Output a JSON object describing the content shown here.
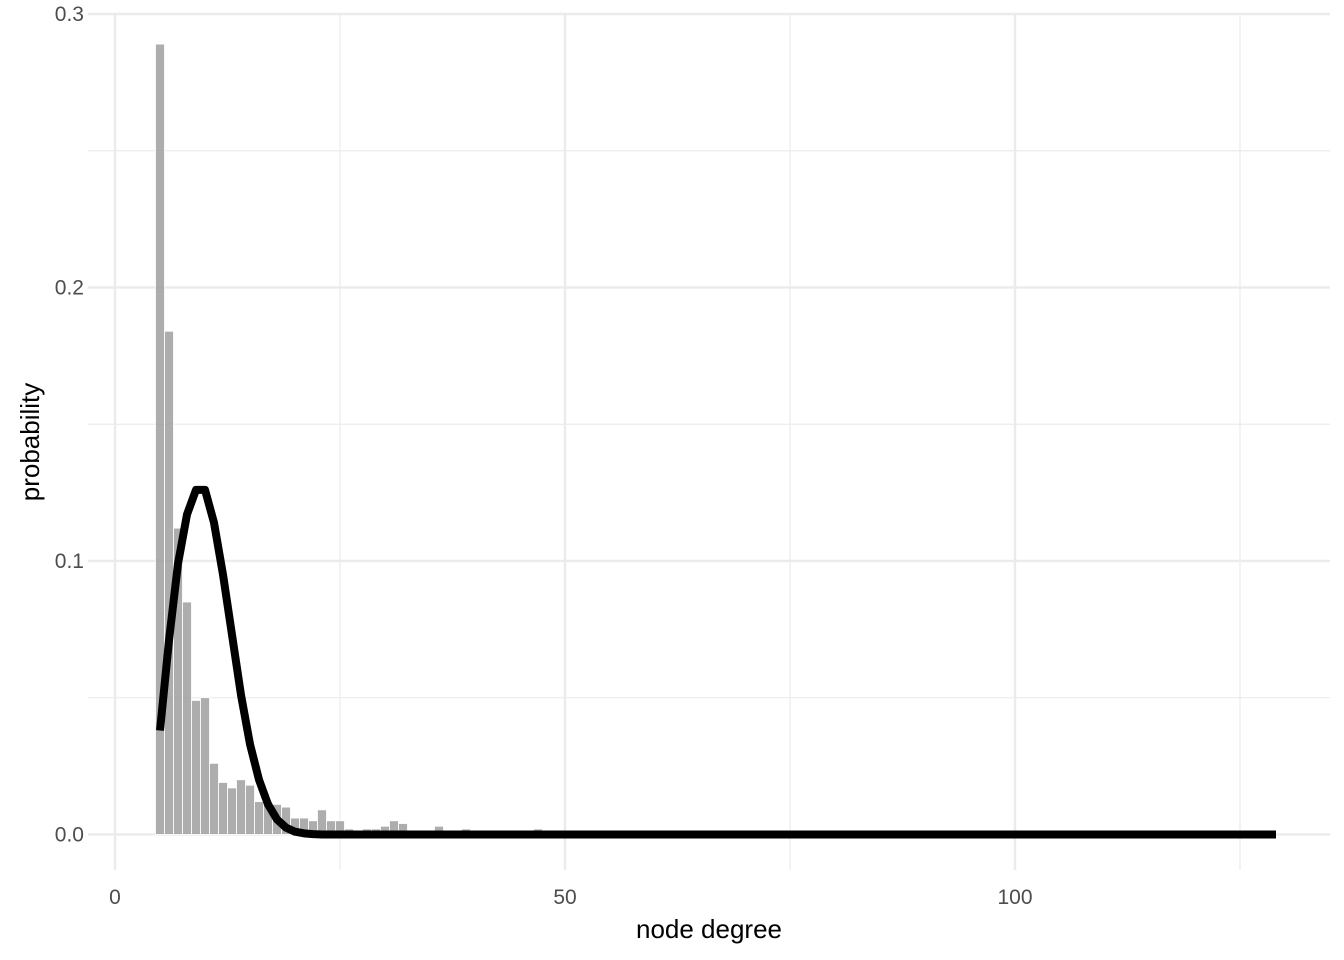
{
  "chart_data": {
    "type": "bar",
    "xlabel": "node degree",
    "ylabel": "probability",
    "xlim": [
      -3,
      135
    ],
    "ylim": [
      -0.013,
      0.3
    ],
    "x_ticks": [
      0,
      50,
      100
    ],
    "x_tick_labels": [
      "0",
      "50",
      "100"
    ],
    "x_minor_ticks": [
      25,
      75,
      125
    ],
    "y_ticks": [
      0.0,
      0.1,
      0.2,
      0.3
    ],
    "y_tick_labels": [
      "0.0",
      "0.1",
      "0.2",
      "0.3"
    ],
    "y_minor_ticks": [
      0.05,
      0.15,
      0.25
    ],
    "grid": true,
    "series": [
      {
        "type": "bar",
        "bar_width": 1,
        "color": "#999999",
        "x": [
          5,
          6,
          7,
          8,
          9,
          10,
          11,
          12,
          13,
          14,
          15,
          16,
          17,
          18,
          19,
          20,
          21,
          22,
          23,
          24,
          25,
          26,
          27,
          28,
          29,
          30,
          31,
          32,
          33,
          34,
          35,
          36,
          37,
          38,
          39,
          40,
          41,
          42,
          43,
          44,
          45,
          46,
          47,
          48,
          49,
          50,
          60,
          70,
          80,
          90,
          100,
          110,
          120,
          128
        ],
        "values": [
          0.289,
          0.184,
          0.112,
          0.085,
          0.049,
          0.05,
          0.026,
          0.019,
          0.017,
          0.02,
          0.018,
          0.012,
          0.012,
          0.011,
          0.01,
          0.006,
          0.006,
          0.005,
          0.009,
          0.005,
          0.005,
          0.002,
          0.001,
          0.002,
          0.002,
          0.003,
          0.005,
          0.004,
          0.001,
          0.001,
          0.001,
          0.003,
          0.001,
          0.001,
          0.002,
          0.001,
          0.001,
          0.001,
          0.001,
          0.001,
          0.001,
          0.001,
          0.002,
          0.001,
          0.001,
          0.0005,
          0.0005,
          0.0005,
          0.0005,
          0.0005,
          0.0005,
          0.0005,
          0.0005,
          0.001
        ]
      },
      {
        "type": "line",
        "color": "#000000",
        "x": [
          5,
          6,
          7,
          8,
          9,
          10,
          11,
          12,
          13,
          14,
          15,
          16,
          17,
          18,
          19,
          20,
          21,
          22,
          23,
          24,
          26,
          30,
          40,
          60,
          80,
          100,
          129
        ],
        "values": [
          0.038,
          0.071,
          0.099,
          0.117,
          0.126,
          0.126,
          0.114,
          0.095,
          0.073,
          0.051,
          0.033,
          0.02,
          0.011,
          0.0055,
          0.0025,
          0.001,
          0.0004,
          0.0001,
          0.0,
          0.0,
          0.0,
          0.0,
          0.0,
          0.0,
          0.0,
          0.0,
          0.0
        ]
      }
    ]
  }
}
